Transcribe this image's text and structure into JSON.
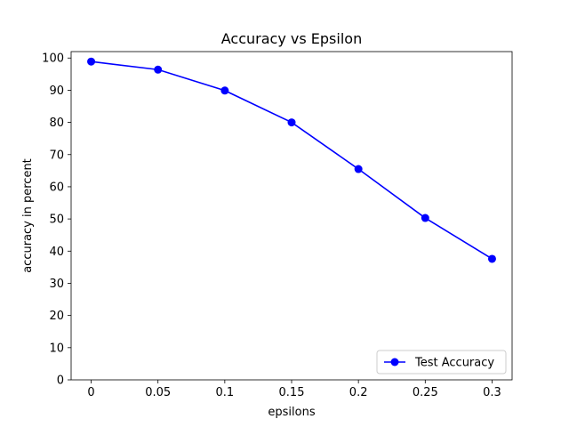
{
  "chart_data": {
    "type": "line",
    "title": "Accuracy vs Epsilon",
    "xlabel": "epsilons",
    "ylabel": "accuracy in percent",
    "x": [
      0,
      0.05,
      0.1,
      0.15,
      0.2,
      0.25,
      0.3
    ],
    "x_tick_labels": [
      "0",
      "0.05",
      "0.1",
      "0.15",
      "0.2",
      "0.25",
      "0.3"
    ],
    "xlim": [
      -0.015,
      0.315
    ],
    "y_ticks": [
      0,
      10,
      20,
      30,
      40,
      50,
      60,
      70,
      80,
      90,
      100
    ],
    "y_tick_labels": [
      "0",
      "10",
      "20",
      "30",
      "40",
      "50",
      "60",
      "70",
      "80",
      "90",
      "100"
    ],
    "ylim": [
      0,
      102
    ],
    "series": [
      {
        "name": "Test Accuracy",
        "color": "#0000ff",
        "marker": "circle",
        "values": [
          98.9,
          96.4,
          89.9,
          80.0,
          65.5,
          50.3,
          37.6
        ]
      }
    ],
    "legend_position": "lower-right",
    "grid": false
  }
}
